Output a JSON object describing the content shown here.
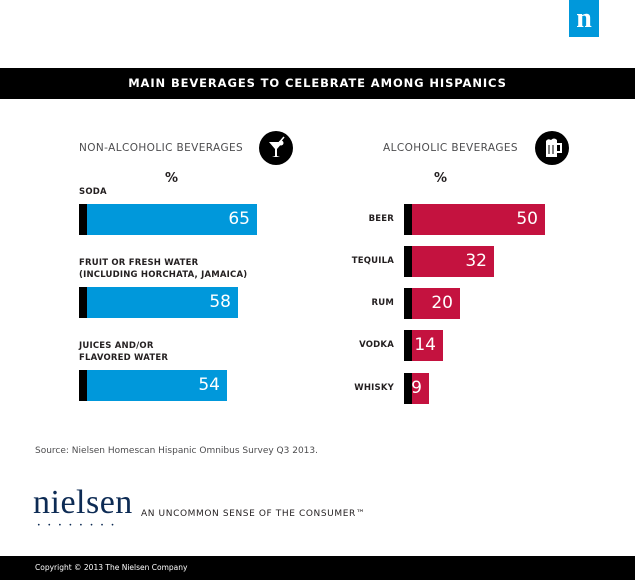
{
  "brand": {
    "logo_letter": "n",
    "wordmark": "nielsen",
    "dots": "••••••••",
    "tagline": "AN UNCOMMON SENSE OF THE CONSUMER™"
  },
  "header": {
    "title": "MAIN BEVERAGES TO CELEBRATE AMONG HISPANICS"
  },
  "source": "Source: Nielsen Homescan Hispanic Omnibus Survey Q3 2013.",
  "footer": {
    "copyright": "Copyright © 2013 The Nielsen Company"
  },
  "icons": {
    "non_alcoholic": "cocktail-icon",
    "alcoholic": "beer-mug-icon"
  },
  "colors": {
    "non_alcoholic_bar": "#0098db",
    "alcoholic_bar": "#c4123f",
    "bar_cap": "#000000",
    "brand_blue": "#0098db"
  },
  "chart_data": [
    {
      "type": "bar",
      "orientation": "horizontal",
      "title": "NON-ALCOHOLIC BEVERAGES",
      "unit_label": "%",
      "categories": [
        "SODA",
        "FRUIT OR  FRESH WATER\n(INCLUDING HORCHATA, JAMAICA)",
        "JUICES AND/OR\nFLAVORED WATER"
      ],
      "values": [
        65,
        58,
        54
      ],
      "xlim": [
        0,
        65
      ]
    },
    {
      "type": "bar",
      "orientation": "horizontal",
      "title": "ALCOHOLIC BEVERAGES",
      "unit_label": "%",
      "categories": [
        "BEER",
        "TEQUILA",
        "RUM",
        "VODKA",
        "WHISKY"
      ],
      "values": [
        50,
        32,
        20,
        14,
        9
      ],
      "xlim": [
        0,
        50
      ]
    }
  ]
}
